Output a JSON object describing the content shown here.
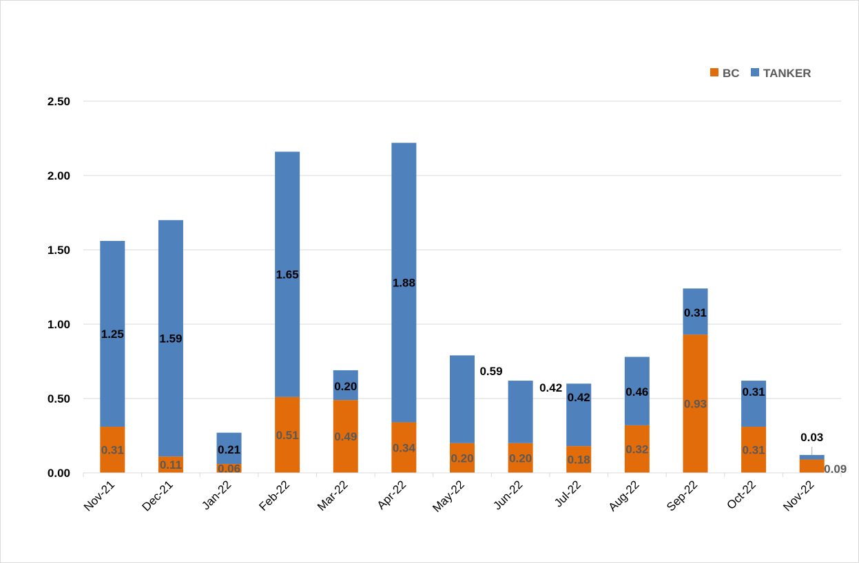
{
  "chart_data": {
    "type": "bar",
    "stacked": true,
    "categories": [
      "Nov-21",
      "Dec-21",
      "Jan-22",
      "Feb-22",
      "Mar-22",
      "Apr-22",
      "May-22",
      "Jun-22",
      "Jul-22",
      "Aug-22",
      "Sep-22",
      "Oct-22",
      "Nov-22"
    ],
    "series": [
      {
        "name": "BC",
        "color": "#E36C0A",
        "values": [
          0.31,
          0.11,
          0.06,
          0.51,
          0.49,
          0.34,
          0.2,
          0.2,
          0.18,
          0.32,
          0.93,
          0.31,
          0.09
        ],
        "labels": [
          "0.31",
          "0.11",
          "0.06",
          "0.51",
          "0.49",
          "0.34",
          "0.20",
          "0.20",
          "0.18",
          "0.32",
          "0.93",
          "0.31",
          "0.09"
        ]
      },
      {
        "name": "TANKER",
        "color": "#4F81BD",
        "values": [
          1.25,
          1.59,
          0.21,
          1.65,
          0.2,
          1.88,
          0.59,
          0.42,
          0.42,
          0.46,
          0.31,
          0.31,
          0.03
        ],
        "labels": [
          "1.25",
          "1.59",
          "0.21",
          "1.65",
          "0.20",
          "1.88",
          "0.59",
          "0.42",
          "0.42",
          "0.46",
          "0.31",
          "0.31",
          "0.03"
        ]
      }
    ],
    "ylim": [
      0,
      2.5
    ],
    "yticks": [
      "0.00",
      "0.50",
      "1.00",
      "1.50",
      "2.00",
      "2.50"
    ],
    "grid": true,
    "legend_position": "top-right",
    "title": "",
    "xlabel": "",
    "ylabel": ""
  }
}
